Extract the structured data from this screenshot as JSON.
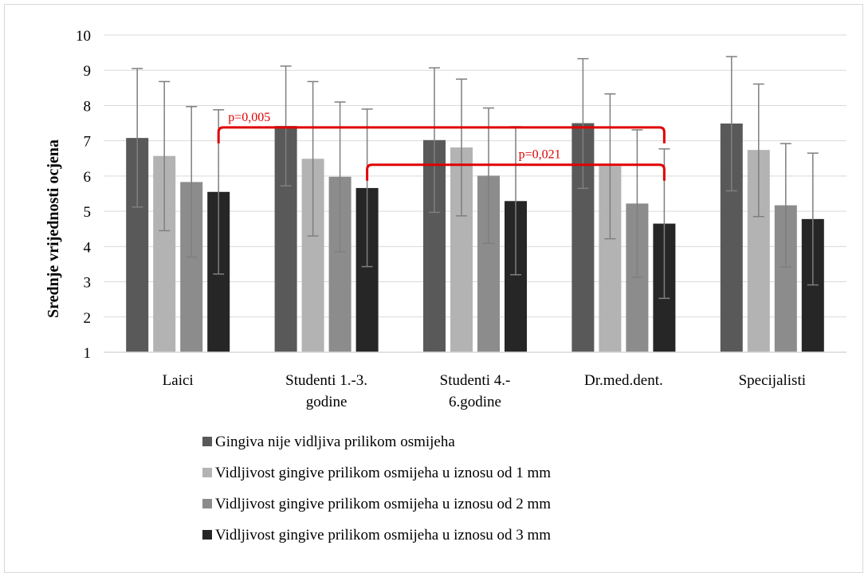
{
  "chart_data": {
    "type": "bar",
    "title": "",
    "xlabel": "",
    "ylabel": "Srednje vrijednosti ocjena",
    "ylim": [
      1,
      10
    ],
    "yticks": [
      1,
      2,
      3,
      4,
      5,
      6,
      7,
      8,
      9,
      10
    ],
    "grid": true,
    "legend_position": "bottom",
    "categories": [
      [
        "Laici"
      ],
      [
        "Studenti 1.-3.",
        "godine"
      ],
      [
        "Studenti 4.-",
        "6.godine"
      ],
      [
        "Dr.med.dent."
      ],
      [
        "Specijalisti"
      ]
    ],
    "series": [
      {
        "name": "Gingiva nije vidljiva prilikom osmijeha",
        "color": "#595959",
        "values": [
          7.08,
          7.42,
          7.02,
          7.5,
          7.49
        ],
        "error_low": [
          5.12,
          5.72,
          4.97,
          5.65,
          5.58
        ],
        "error_high": [
          9.05,
          9.12,
          9.07,
          9.33,
          9.39
        ]
      },
      {
        "name": "Vidljivost gingive prilikom osmijeha u iznosu od  1 mm",
        "color": "#b3b3b3",
        "values": [
          6.57,
          6.49,
          6.81,
          6.28,
          6.74
        ],
        "error_low": [
          4.45,
          4.3,
          4.87,
          4.22,
          4.85
        ],
        "error_high": [
          8.68,
          8.68,
          8.75,
          8.33,
          8.61
        ]
      },
      {
        "name": "Vidljivost gingive prilikom osmijeha u iznosu od  2 mm",
        "color": "#8c8c8c",
        "values": [
          5.83,
          5.98,
          6.01,
          5.22,
          5.17
        ],
        "error_low": [
          3.7,
          3.85,
          4.09,
          3.13,
          3.42
        ],
        "error_high": [
          7.97,
          8.1,
          7.93,
          7.31,
          6.92
        ]
      },
      {
        "name": "Vidljivost gingive prilikom osmijeha u iznosu od  3 mm",
        "color": "#262626",
        "values": [
          5.55,
          5.66,
          5.29,
          4.65,
          4.78
        ],
        "error_low": [
          3.22,
          3.43,
          3.2,
          2.53,
          2.91
        ],
        "error_high": [
          7.88,
          7.9,
          7.4,
          6.77,
          6.65
        ]
      }
    ],
    "annotations": [
      {
        "text": "p=0,005",
        "color": "#e00000",
        "from": [
          0,
          3
        ],
        "to": [
          3,
          3
        ],
        "level": 7.38
      },
      {
        "text": "p=0,021",
        "color": "#e00000",
        "from": [
          1,
          3
        ],
        "to": [
          3,
          3
        ],
        "level": 6.32
      }
    ]
  }
}
